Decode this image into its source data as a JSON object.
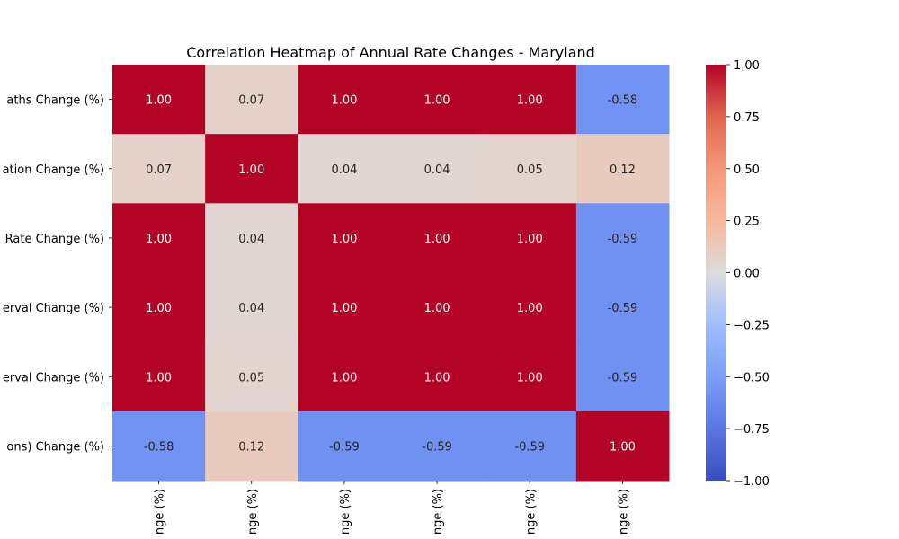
{
  "chart_data": {
    "type": "heatmap",
    "title": "Correlation Heatmap of Annual Rate Changes - Maryland",
    "row_labels": [
      "aths Change (%)",
      "ation Change (%)",
      "Rate Change (%)",
      "erval Change (%)",
      "erval Change (%)",
      "ons) Change (%)"
    ],
    "col_labels": [
      "nge (%)",
      "nge (%)",
      "nge (%)",
      "nge (%)",
      "nge (%)",
      "nge (%)"
    ],
    "values": [
      [
        1.0,
        0.07,
        1.0,
        1.0,
        1.0,
        -0.58
      ],
      [
        0.07,
        1.0,
        0.04,
        0.04,
        0.05,
        0.12
      ],
      [
        1.0,
        0.04,
        1.0,
        1.0,
        1.0,
        -0.59
      ],
      [
        1.0,
        0.04,
        1.0,
        1.0,
        1.0,
        -0.59
      ],
      [
        1.0,
        0.05,
        1.0,
        1.0,
        1.0,
        -0.59
      ],
      [
        -0.58,
        0.12,
        -0.59,
        -0.59,
        -0.59,
        1.0
      ]
    ],
    "value_format_decimals": 2,
    "colormap": "coolwarm",
    "vmin": -1.0,
    "vmax": 1.0,
    "colorbar_ticks": [
      1.0,
      0.75,
      0.5,
      0.25,
      0.0,
      -0.25,
      -0.5,
      -0.75,
      -1.0
    ]
  }
}
